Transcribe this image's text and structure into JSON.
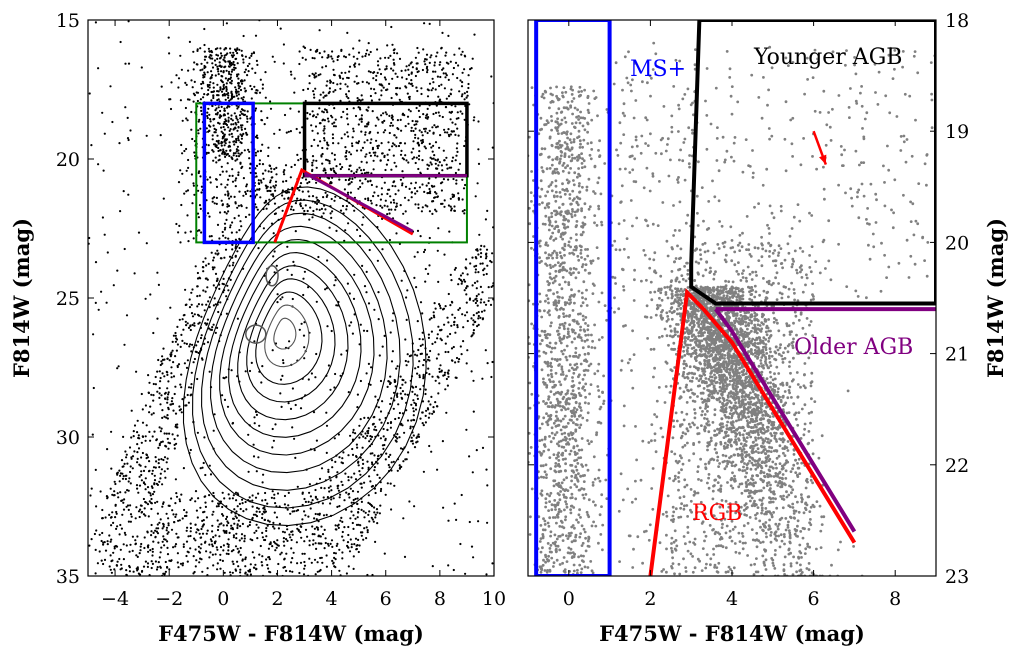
{
  "chart_data": [
    {
      "type": "scatter",
      "panel": "left",
      "xlabel": "F475W - F814W (mag)",
      "ylabel": "F814W (mag)",
      "xlim": [
        -5,
        10
      ],
      "ylim": [
        35,
        15
      ],
      "y_inverted": true,
      "xticks": [
        -4,
        -2,
        0,
        2,
        4,
        6,
        8,
        10
      ],
      "xtick_labels": [
        "−4",
        "−2",
        "0",
        "2",
        "4",
        "6",
        "8",
        "10"
      ],
      "yticks": [
        15,
        20,
        25,
        30,
        35
      ],
      "ytick_labels": [
        "15",
        "20",
        "25",
        "30",
        "35"
      ],
      "boxes": [
        {
          "name": "green-box",
          "color": "#008000",
          "x": [
            -1.0,
            9.0
          ],
          "y": [
            18.0,
            23.0
          ]
        },
        {
          "name": "blue-box",
          "color": "#0000ff",
          "x": [
            -0.7,
            1.1
          ],
          "y": [
            18.0,
            23.0
          ]
        },
        {
          "name": "black-box",
          "color": "#000000",
          "x": [
            3.0,
            9.0
          ],
          "y": [
            18.0,
            20.6
          ]
        }
      ],
      "lines": [
        {
          "name": "rgb-line",
          "color": "#ff0000",
          "points": [
            [
              1.9,
              23.0
            ],
            [
              2.9,
              20.4
            ],
            [
              7.0,
              22.7
            ]
          ]
        },
        {
          "name": "older-agb-line",
          "color": "#800080",
          "points": [
            [
              3.0,
              20.6
            ],
            [
              9.0,
              20.6
            ]
          ]
        },
        {
          "name": "older-agb-diag",
          "color": "#800080",
          "points": [
            [
              3.0,
              20.5
            ],
            [
              7.0,
              22.6
            ]
          ]
        }
      ],
      "contours": {
        "description_levels": 12,
        "color": "#000000"
      }
    },
    {
      "type": "scatter",
      "panel": "right",
      "xlabel": "F475W - F814W (mag)",
      "ylabel": "F814W (mag)",
      "xlim": [
        -1.0,
        9.0
      ],
      "ylim": [
        23.0,
        18.0
      ],
      "y_inverted": true,
      "y_axis_side": "right",
      "xticks": [
        0,
        2,
        4,
        6,
        8
      ],
      "xtick_labels": [
        "0",
        "2",
        "4",
        "6",
        "8"
      ],
      "yticks": [
        18,
        19,
        20,
        21,
        22,
        23
      ],
      "ytick_labels": [
        "18",
        "19",
        "20",
        "21",
        "22",
        "23"
      ],
      "point_color": "#808080",
      "regions": [
        {
          "name": "MS+",
          "label": "MS+",
          "color": "#0000ff",
          "polygon": [
            [
              -0.8,
              18.0
            ],
            [
              1.0,
              18.0
            ],
            [
              1.0,
              23.0
            ],
            [
              -0.8,
              23.0
            ]
          ]
        },
        {
          "name": "Younger AGB",
          "label": "Younger AGB",
          "color": "#000000",
          "polygon": [
            [
              3.2,
              18.0
            ],
            [
              9.0,
              18.0
            ],
            [
              9.0,
              20.55
            ],
            [
              3.6,
              20.55
            ],
            [
              3.0,
              20.4
            ],
            [
              3.0,
              20.2
            ]
          ]
        },
        {
          "name": "Older AGB",
          "label": "Older AGB",
          "color": "#800080",
          "points": [
            [
              3.6,
              20.6
            ],
            [
              9.0,
              20.6
            ]
          ],
          "diag": [
            [
              3.6,
              20.6
            ],
            [
              4.0,
              20.8
            ],
            [
              5.0,
              21.4
            ],
            [
              7.0,
              22.6
            ]
          ]
        },
        {
          "name": "RGB",
          "label": "RGB",
          "color": "#ff0000",
          "points": [
            [
              2.0,
              23.0
            ],
            [
              2.9,
              20.45
            ],
            [
              3.3,
              20.6
            ],
            [
              4.0,
              20.9
            ],
            [
              5.0,
              21.5
            ],
            [
              7.0,
              22.7
            ]
          ]
        }
      ],
      "arrow": {
        "color": "#ff0000",
        "from": [
          6.0,
          19.0
        ],
        "to": [
          6.3,
          19.3
        ]
      }
    }
  ]
}
